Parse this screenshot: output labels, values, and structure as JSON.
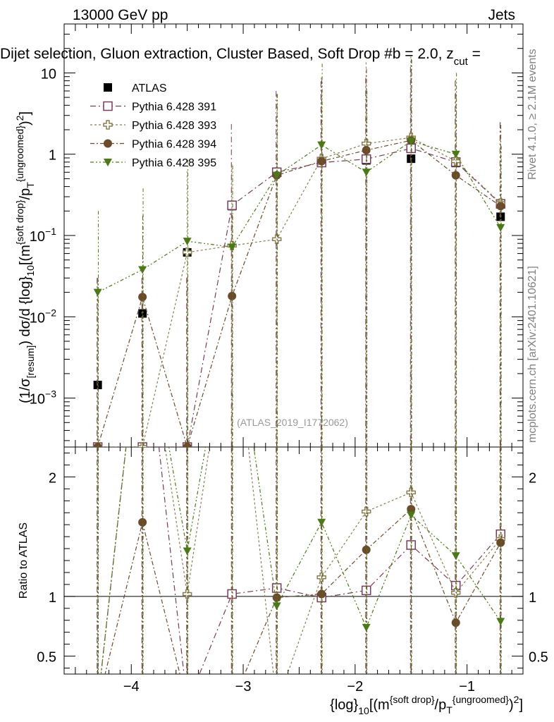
{
  "header": {
    "left": "13000 GeV pp",
    "right": "Jets",
    "title": "Dijet selection, Gluon extraction, Cluster Based, Soft Drop #b = 2.0, z",
    "title_cut": "cut",
    "title_eq": " ="
  },
  "side": {
    "rivet": "Rivet 4.1.0, ≥ 2.1M events",
    "mcplots": "mcplots.cern.ch [arXiv:2401.10621]"
  },
  "analysis_id": "(ATLAS_2019_I1772062)",
  "colors": {
    "atlas": "#000000",
    "p391": "#7a3b5a",
    "p393": "#8b7d4f",
    "p394": "#6b4b2a",
    "p395": "#4b7a14"
  },
  "chart_data": {
    "type": "scatter",
    "main": {
      "ylabel": "(1/σ_{resum}) dσ/d {log}_{10}[(m^{soft drop}/p_T^{ungroomed})^2]",
      "yscale": "log",
      "ylim": [
        0.00025,
        40
      ],
      "yticks": [
        {
          "v": 10,
          "label": "10"
        },
        {
          "v": 1,
          "label": "1"
        },
        {
          "v": 0.1,
          "label": "10",
          "exp": "−1"
        },
        {
          "v": 0.01,
          "label": "10",
          "exp": "−2"
        },
        {
          "v": 0.001,
          "label": "10",
          "exp": "−3"
        }
      ]
    },
    "ratio": {
      "ylabel": "Ratio to ATLAS",
      "ylim": [
        0.35,
        2.25
      ],
      "yticks": [
        {
          "v": 0.5,
          "label": "0.5"
        },
        {
          "v": 1,
          "label": "1"
        },
        {
          "v": 2,
          "label": "2"
        }
      ]
    },
    "xlim": [
      -4.6,
      -0.5
    ],
    "xticks": [
      {
        "v": -4,
        "label": "−4"
      },
      {
        "v": -3,
        "label": "−3"
      },
      {
        "v": -2,
        "label": "−2"
      },
      {
        "v": -1,
        "label": "−1"
      }
    ],
    "xlabel": "{log}_{10}[(m^{soft drop}/p_T^{ungroomed})^2]",
    "x": [
      -4.3,
      -3.9,
      -3.5,
      -3.1,
      -2.7,
      -2.3,
      -1.9,
      -1.5,
      -1.1,
      -0.7
    ],
    "series": [
      {
        "key": "atlas",
        "name": "ATLAS",
        "marker": "square-filled",
        "values": [
          0.00145,
          0.011,
          0.062,
          0.23,
          0.6,
          0.8,
          0.84,
          0.88,
          0.78,
          0.17
        ],
        "ratio": [
          1,
          1,
          1,
          1,
          1,
          1,
          1,
          1,
          1,
          1
        ]
      },
      {
        "key": "p391",
        "name": "Pythia 6.428 391",
        "marker": "square-open",
        "values": [
          0.00025,
          0.00025,
          0.00025,
          0.235,
          0.6,
          0.79,
          0.87,
          1.18,
          0.8,
          0.245
        ],
        "ratio": [
          null,
          null,
          null,
          1.02,
          1.07,
          0.99,
          1.05,
          1.43,
          1.09,
          1.52
        ]
      },
      {
        "key": "p393",
        "name": "Pythia 6.428 393",
        "marker": "cross-open",
        "values": [
          0.00025,
          0.00025,
          0.062,
          0.075,
          0.09,
          0.88,
          1.35,
          1.6,
          0.82,
          0.25
        ],
        "ratio": [
          null,
          null,
          1.02,
          null,
          null,
          1.16,
          1.71,
          1.87,
          1.03,
          1.48
        ]
      },
      {
        "key": "p394",
        "name": "Pythia 6.428 394",
        "marker": "circle-filled",
        "values": [
          0.00025,
          0.0175,
          0.00025,
          0.018,
          0.55,
          0.82,
          1.12,
          1.48,
          0.55,
          0.23
        ],
        "ratio": [
          null,
          1.62,
          null,
          null,
          0.99,
          1.02,
          1.39,
          1.73,
          0.78,
          1.45
        ]
      },
      {
        "key": "p395",
        "name": "Pythia 6.428 395",
        "marker": "triangle-down-filled",
        "values": [
          0.02,
          0.038,
          0.085,
          0.072,
          0.55,
          1.3,
          0.6,
          1.45,
          1.0,
          0.125
        ],
        "ratio": [
          null,
          null,
          1.38,
          null,
          0.92,
          1.62,
          0.74,
          1.68,
          1.34,
          0.79
        ]
      }
    ]
  }
}
